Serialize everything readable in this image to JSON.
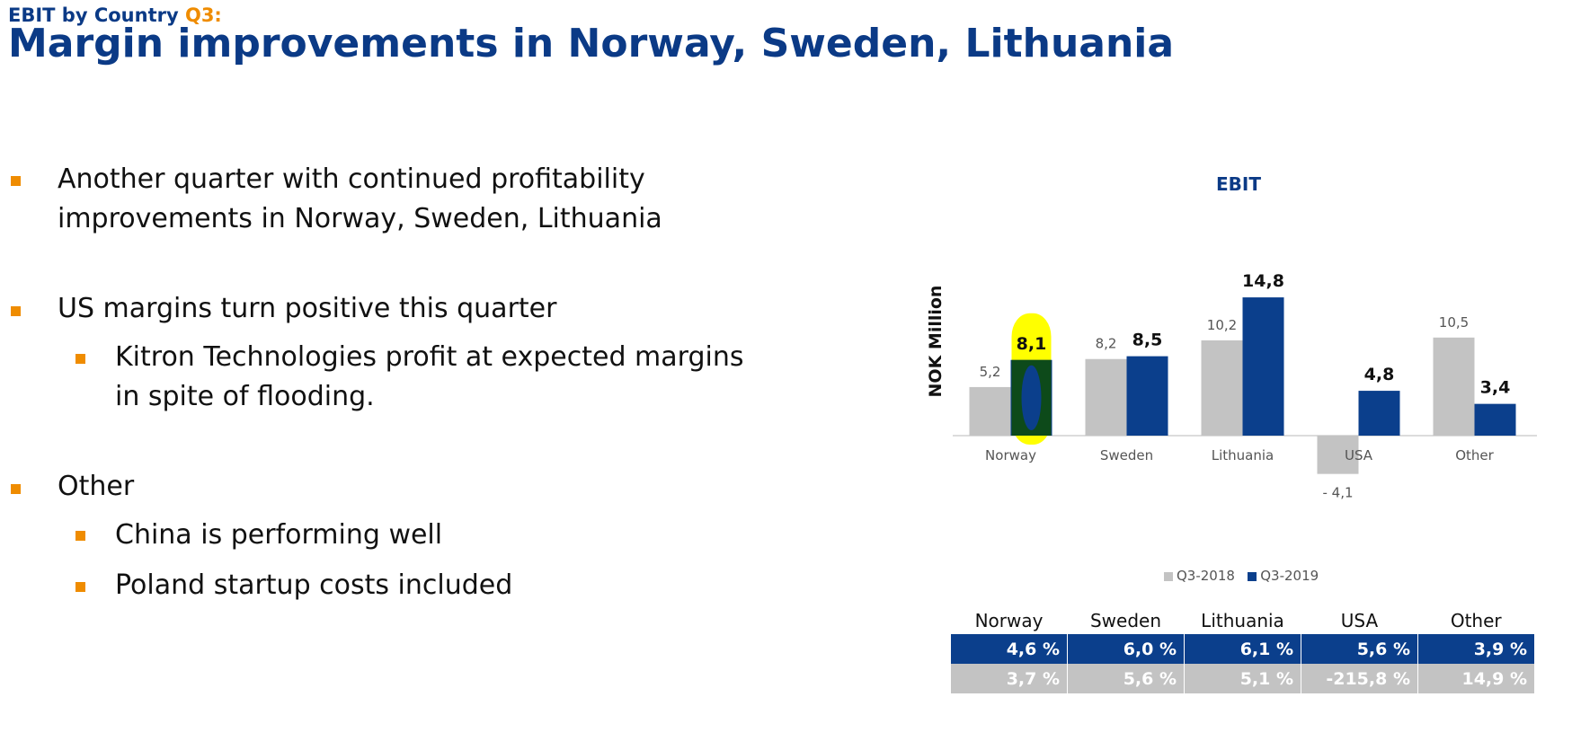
{
  "header": {
    "supertitle": "EBIT by Country",
    "supertitle_accent": "Q3:",
    "title": "Margin improvements in Norway, Sweden, Lithuania"
  },
  "bullets": [
    {
      "level": 1,
      "lines": [
        "Another quarter with continued profitability",
        "improvements in Norway, Sweden, Lithuania"
      ]
    },
    {
      "level": 1,
      "lines": [
        "US margins turn positive this quarter"
      ]
    },
    {
      "level": 2,
      "lines": [
        "Kitron Technologies profit at expected margins",
        "in spite of flooding."
      ]
    },
    {
      "level": 1,
      "lines": [
        "Other"
      ]
    },
    {
      "level": 2,
      "lines": [
        "China is performing well"
      ]
    },
    {
      "level": 2,
      "lines": [
        "Poland startup costs included"
      ]
    }
  ],
  "colors": {
    "title": "#0b3a86",
    "accent": "#ef8c00",
    "q3_2018": "#c3c3c3",
    "q3_2019": "#0b3f8c",
    "highlight": "#ffff00",
    "highlight_inner": "#0d4a1a"
  },
  "chart_data": {
    "type": "bar",
    "title": "EBIT",
    "ylabel": "NOK Million",
    "categories": [
      "Norway",
      "Sweden",
      "Lithuania",
      "USA",
      "Other"
    ],
    "series": [
      {
        "name": "Q3-2018",
        "values": [
          5.2,
          8.2,
          10.2,
          -4.1,
          10.5
        ],
        "labels": [
          "5,2",
          "8,2",
          "10,2",
          "- 4,1",
          "10,5"
        ]
      },
      {
        "name": "Q3-2019",
        "values": [
          8.1,
          8.5,
          14.8,
          4.8,
          3.4
        ],
        "labels": [
          "8,1",
          "8,5",
          "14,8",
          "4,8",
          "3,4"
        ]
      }
    ],
    "highlighted": {
      "category": "Norway",
      "series": "Q3-2019"
    },
    "legend": "bottom",
    "grid": false
  },
  "margin_table": {
    "headers": [
      "Norway",
      "Sweden",
      "Lithuania",
      "USA",
      "Other"
    ],
    "rows": [
      {
        "period": "Q3-2019",
        "values": [
          "4,6 %",
          "6,0 %",
          "6,1 %",
          "5,6 %",
          "3,9 %"
        ]
      },
      {
        "period": "Q3-2018",
        "values": [
          "3,7 %",
          "5,6 %",
          "5,1 %",
          "-215,8 %",
          "14,9 %"
        ]
      }
    ]
  }
}
